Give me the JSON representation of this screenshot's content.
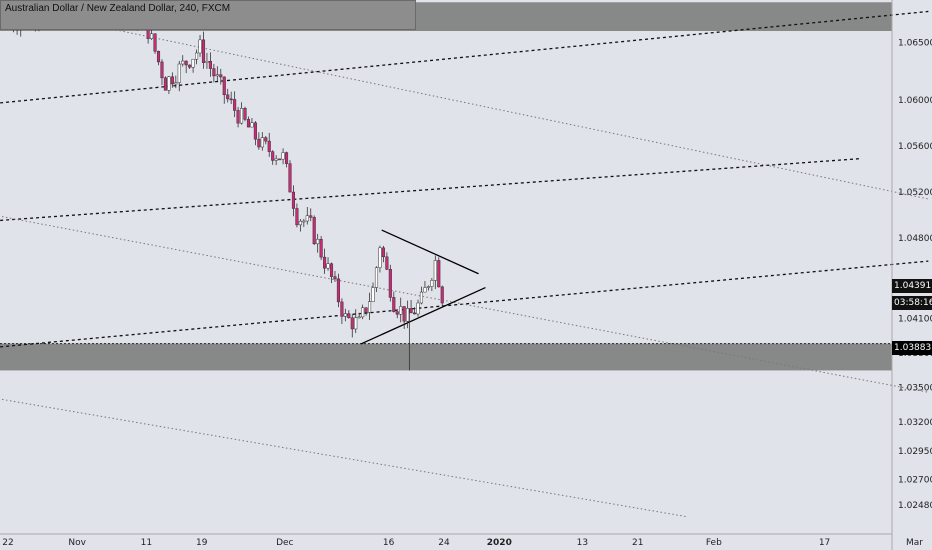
{
  "header": {
    "title": "Australian Dollar / New Zealand Dollar, 240, FXCM"
  },
  "price_tags": {
    "last_price": "1.04391",
    "countdown": "03:58:16",
    "level_price": "1.03883"
  },
  "colors": {
    "background": "#e1e3eb",
    "bull_candle": "#ffffff",
    "bear_candle": "#cc2a78",
    "zone": "#7d7d7d",
    "last_price_tag": "#111111",
    "level_tag": "#000000"
  },
  "chart_data": {
    "type": "candlestick",
    "symbol": "AUDNZD",
    "timeframe": "240",
    "y_ticks": [
      "1.06500",
      "1.06000",
      "1.05600",
      "1.05200",
      "1.04800",
      "1.04391",
      "1.04100",
      "1.03800",
      "1.03500",
      "1.03200",
      "1.02950",
      "1.02700",
      "1.02480"
    ],
    "x_ticks": [
      "22",
      "Nov",
      "11",
      "19",
      "Dec",
      "16",
      "24",
      "2020",
      "13",
      "21",
      "Feb",
      "17",
      "Mar"
    ],
    "ylim": [
      1.0235,
      1.068
    ],
    "grid": false,
    "current_price": 1.04391,
    "horizontal_level": 1.03883,
    "zones": [
      {
        "from": 1.0365,
        "to": 1.03883
      },
      {
        "from": 1.066,
        "to": 1.0685
      }
    ],
    "price_path": [
      {
        "date": "2019-10-22",
        "price": 1.0665
      },
      {
        "date": "2019-11-01",
        "price": 1.069
      },
      {
        "date": "2019-11-11",
        "price": 1.067
      },
      {
        "date": "2019-11-14",
        "price": 1.0615
      },
      {
        "date": "2019-11-19",
        "price": 1.0645
      },
      {
        "date": "2019-11-23",
        "price": 1.06
      },
      {
        "date": "2019-11-28",
        "price": 1.056
      },
      {
        "date": "2019-12-01",
        "price": 1.055
      },
      {
        "date": "2019-12-03",
        "price": 1.05
      },
      {
        "date": "2019-12-05",
        "price": 1.049
      },
      {
        "date": "2019-12-08",
        "price": 1.0445
      },
      {
        "date": "2019-12-10",
        "price": 1.041
      },
      {
        "date": "2019-12-12",
        "price": 1.0405
      },
      {
        "date": "2019-12-14",
        "price": 1.0435
      },
      {
        "date": "2019-12-15",
        "price": 1.0475
      },
      {
        "date": "2019-12-17",
        "price": 1.0425
      },
      {
        "date": "2019-12-19",
        "price": 1.041
      },
      {
        "date": "2019-12-21",
        "price": 1.0425
      },
      {
        "date": "2019-12-23",
        "price": 1.046
      },
      {
        "date": "2019-12-24",
        "price": 1.043
      }
    ],
    "lines": [
      {
        "style": "dashed",
        "from": {
          "date": "2019-10-20",
          "price": 1.0597
        },
        "to": {
          "date": "2020-03-03",
          "price": 1.0677
        }
      },
      {
        "style": "dashed",
        "from": {
          "date": "2019-10-20",
          "price": 1.0495
        },
        "to": {
          "date": "2020-02-22",
          "price": 1.0549
        }
      },
      {
        "style": "dashed",
        "from": {
          "date": "2019-10-20",
          "price": 1.0385
        },
        "to": {
          "date": "2020-03-03",
          "price": 1.046
        }
      },
      {
        "style": "dotted",
        "from": {
          "date": "2019-10-20",
          "price": 1.0341
        },
        "to": {
          "date": "2020-01-28",
          "price": 1.0238
        }
      },
      {
        "style": "dotted",
        "from": {
          "date": "2019-10-20",
          "price": 1.0683
        },
        "to": {
          "date": "2020-03-03",
          "price": 1.0514
        }
      },
      {
        "style": "dotted",
        "from": {
          "date": "2019-10-20",
          "price": 1.05
        },
        "to": {
          "date": "2020-03-03",
          "price": 1.0346
        }
      },
      {
        "style": "solid",
        "from": {
          "date": "2019-12-15",
          "price": 1.0487
        },
        "to": {
          "date": "2019-12-29",
          "price": 1.0449
        }
      },
      {
        "style": "solid",
        "from": {
          "date": "2019-12-12",
          "price": 1.0388
        },
        "to": {
          "date": "2019-12-30",
          "price": 1.0437
        }
      }
    ]
  }
}
